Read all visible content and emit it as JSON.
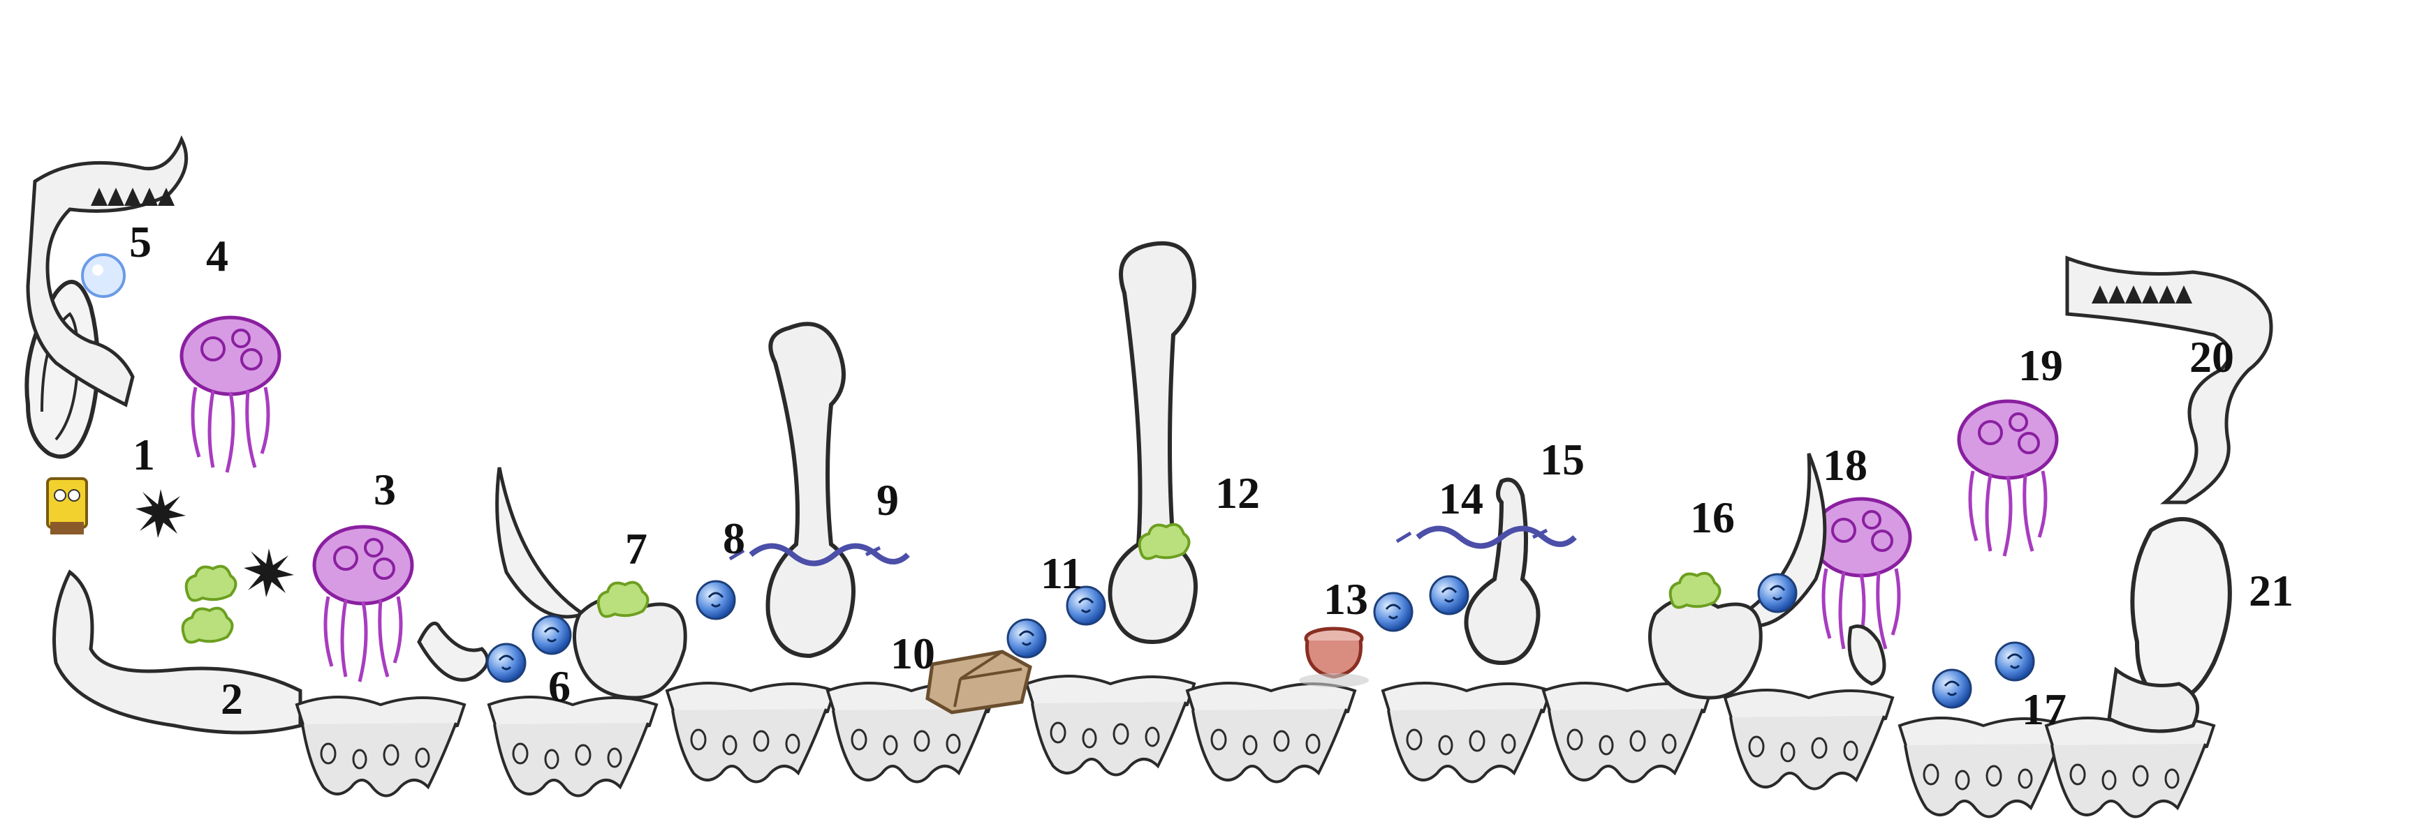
{
  "level_map": {
    "labels": [
      "1",
      "2",
      "3",
      "4",
      "5",
      "6",
      "7",
      "8",
      "9",
      "10",
      "11",
      "12",
      "13",
      "14",
      "15",
      "16",
      "17",
      "18",
      "19",
      "20",
      "21"
    ]
  },
  "palette": {
    "ink": "#2a2a2a",
    "rock_fill": "#f2f2f2",
    "jellyfish": "#b23cc9",
    "bubble": "#2f6fd6",
    "slime": "#7fbf2a",
    "crate": "#8b6a44",
    "pot": "#b5473a",
    "eel": "#4b4fa8",
    "sponge": "#f2d12e"
  },
  "icons": {
    "sponge_character": "sponge-character-icon",
    "jellyfish": "jellyfish-icon",
    "bubble": "bubble-icon",
    "slime": "slime-icon",
    "crate": "crate-icon",
    "pot": "pot-icon",
    "eel": "eel-icon",
    "urchin": "urchin-icon",
    "bone_pillar": "bone-pillar-icon",
    "clam_door": "clam-door-icon",
    "spikes": "spikes-icon"
  }
}
